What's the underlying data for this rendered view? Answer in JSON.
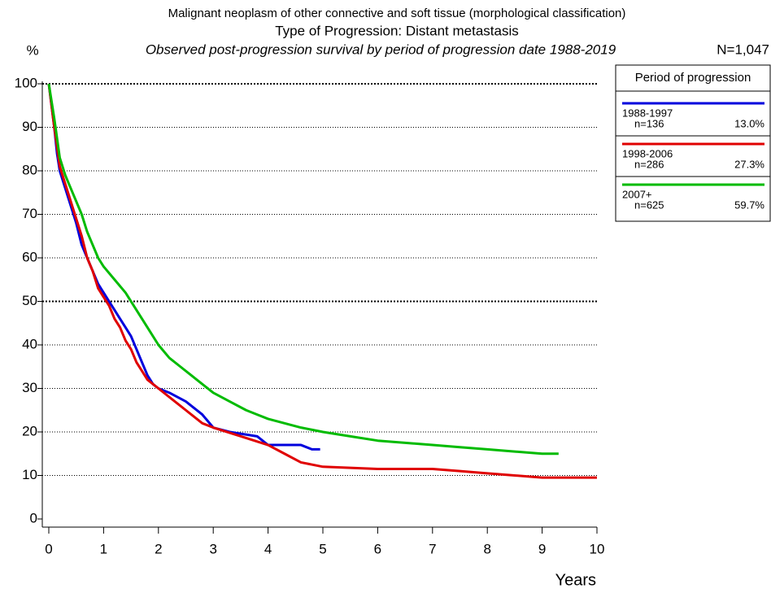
{
  "chart_data": {
    "type": "line",
    "title": "Malignant neoplasm of other connective and soft tissue (morphological classification)",
    "subtitle": "Type of Progression: Distant metastasis",
    "description": "Observed post-progression survival by period of progression date 1988-2019",
    "total_label": "N=1,047",
    "y_label": "%",
    "x_label": "Years",
    "legend_title": "Period of progression",
    "xlim": [
      0,
      10
    ],
    "xticks": [
      0,
      1,
      2,
      3,
      4,
      5,
      6,
      7,
      8,
      9,
      10
    ],
    "ylim": [
      0,
      100
    ],
    "yticks": [
      0,
      10,
      20,
      30,
      40,
      50,
      60,
      70,
      80,
      90,
      100
    ],
    "grid": true,
    "series": [
      {
        "name": "1988-1997",
        "color": "#0000dd",
        "count_label": "n=136",
        "percent_label": "13.0%",
        "x": [
          0,
          0.1,
          0.15,
          0.2,
          0.3,
          0.4,
          0.5,
          0.6,
          0.7,
          0.8,
          0.9,
          1.0,
          1.1,
          1.2,
          1.3,
          1.4,
          1.5,
          1.6,
          1.7,
          1.8,
          1.9,
          2.0,
          2.2,
          2.5,
          2.8,
          3.0,
          3.3,
          3.8,
          4.0,
          4.6,
          4.8,
          4.95
        ],
        "values": [
          100,
          90,
          84,
          80,
          76,
          72,
          68,
          63,
          60,
          57,
          54,
          52,
          50,
          48,
          46,
          44,
          42,
          39,
          36,
          33,
          31,
          30,
          29,
          27,
          24,
          21,
          20,
          19,
          17,
          17,
          16,
          16
        ]
      },
      {
        "name": "1998-2006",
        "color": "#e00000",
        "count_label": "n=286",
        "percent_label": "27.3%",
        "x": [
          0,
          0.1,
          0.2,
          0.3,
          0.4,
          0.5,
          0.6,
          0.7,
          0.8,
          0.9,
          1.0,
          1.1,
          1.2,
          1.3,
          1.4,
          1.5,
          1.6,
          1.7,
          1.8,
          1.9,
          2.0,
          2.3,
          2.5,
          2.8,
          3.0,
          3.5,
          4.0,
          4.3,
          4.6,
          5.0,
          6.0,
          7.0,
          7.5,
          8.0,
          9.0,
          10.0
        ],
        "values": [
          100,
          90,
          81,
          77,
          73,
          69,
          65,
          60,
          57,
          53,
          51,
          49,
          46,
          44,
          41,
          39,
          36,
          34,
          32,
          31,
          30,
          27,
          25,
          22,
          21,
          19,
          17,
          15,
          13,
          12,
          11.5,
          11.5,
          11,
          10.5,
          9.5,
          9.5
        ]
      },
      {
        "name": "2007+",
        "color": "#00bb00",
        "count_label": "n=625",
        "percent_label": "59.7%",
        "x": [
          0,
          0.1,
          0.2,
          0.3,
          0.4,
          0.5,
          0.6,
          0.7,
          0.8,
          0.9,
          1.0,
          1.2,
          1.4,
          1.6,
          1.8,
          2.0,
          2.2,
          2.4,
          2.6,
          2.8,
          3.0,
          3.3,
          3.6,
          3.8,
          4.0,
          4.3,
          4.6,
          5.0,
          5.5,
          6.0,
          6.5,
          7.0,
          7.5,
          8.0,
          9.0,
          9.3
        ],
        "values": [
          100,
          92,
          83,
          79,
          76,
          73,
          70,
          66,
          63,
          60,
          58,
          55,
          52,
          48,
          44,
          40,
          37,
          35,
          33,
          31,
          29,
          27,
          25,
          24,
          23,
          22,
          21,
          20,
          19,
          18,
          17.5,
          17,
          16.5,
          16,
          15,
          15
        ]
      }
    ]
  }
}
